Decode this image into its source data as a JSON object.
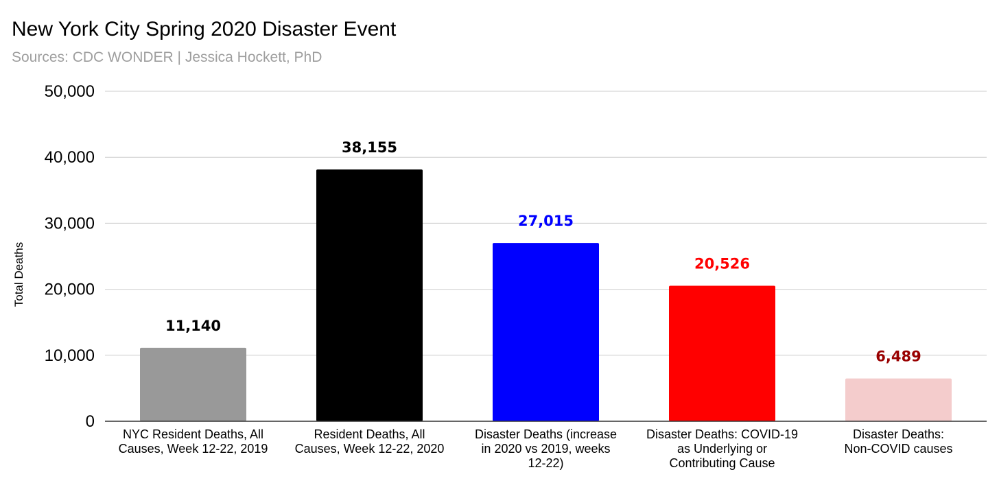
{
  "chart_data": {
    "type": "bar",
    "title": "New York City Spring 2020 Disaster Event",
    "subtitle": "Sources: CDC WONDER | Jessica Hockett, PhD",
    "xlabel": "",
    "ylabel": "Total Deaths",
    "ylim": [
      0,
      50000
    ],
    "yticks": [
      0,
      10000,
      20000,
      30000,
      40000,
      50000
    ],
    "ytick_labels": [
      "0",
      "10,000",
      "20,000",
      "30,000",
      "40,000",
      "50,000"
    ],
    "grid": true,
    "categories": [
      [
        "NYC Resident Deaths, All",
        "Causes, Week 12-22, 2019"
      ],
      [
        "Resident Deaths, All",
        "Causes, Week 12-22, 2020"
      ],
      [
        "Disaster Deaths (increase",
        "in 2020 vs 2019, weeks",
        "12-22)"
      ],
      [
        "Disaster Deaths: COVID-19",
        "as Underlying or",
        "Contributing Cause"
      ],
      [
        "Disaster Deaths:",
        "Non-COVID causes"
      ]
    ],
    "values": [
      11140,
      38155,
      27015,
      20526,
      6489
    ],
    "value_labels": [
      "11,140",
      "38,155",
      "27,015",
      "20,526",
      "6,489"
    ],
    "bar_colors": [
      "#999999",
      "#000000",
      "#0000ff",
      "#ff0000",
      "#f4cccc"
    ],
    "label_colors": [
      "#000000",
      "#000000",
      "#0000ff",
      "#ff0000",
      "#990000"
    ]
  }
}
